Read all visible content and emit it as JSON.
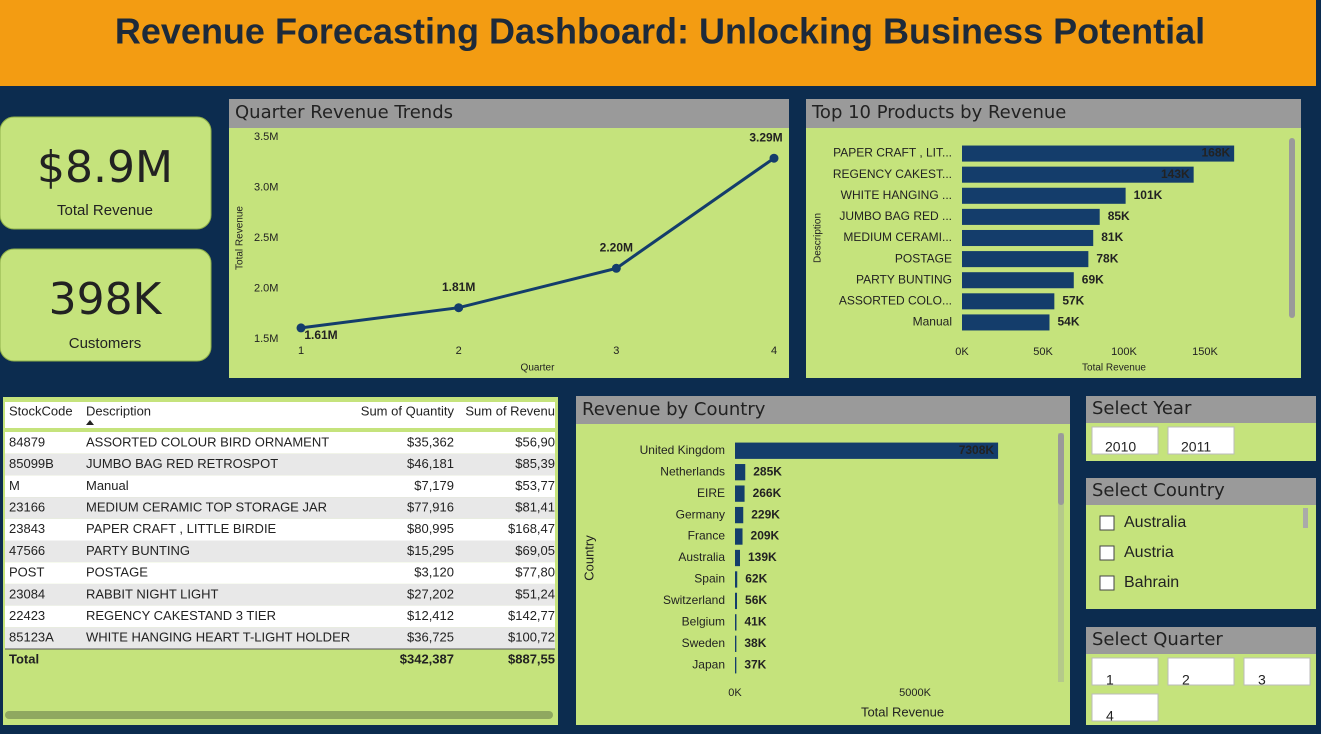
{
  "header": {
    "title": "Revenue Forecasting Dashboard: Unlocking Business Potential"
  },
  "kpis": [
    {
      "value": "$8.9M",
      "label": "Total Revenue"
    },
    {
      "value": "398K",
      "label": "Customers"
    }
  ],
  "chart_data": [
    {
      "type": "line",
      "title": "Quarter Revenue Trends",
      "x_label": "Quarter",
      "y_label": "Total Revenue",
      "x": [
        1,
        2,
        3,
        4
      ],
      "values": [
        1610000,
        1810000,
        2200000,
        3290000
      ],
      "value_labels": [
        "1.61M",
        "1.81M",
        "2.20M",
        "3.29M"
      ],
      "color": "#143d6b",
      "xlim": [
        1,
        4
      ],
      "xticks": [
        1,
        2,
        3,
        4
      ],
      "ylim": [
        1500000,
        3500000
      ],
      "yticks": [
        {
          "value": 1500000,
          "label": "1.5M"
        },
        {
          "value": 2000000,
          "label": "2.0M"
        },
        {
          "value": 2500000,
          "label": "2.5M"
        },
        {
          "value": 3000000,
          "label": "3.0M"
        },
        {
          "value": 3500000,
          "label": "3.5M"
        }
      ],
      "grid": false
    },
    {
      "type": "bar",
      "orientation": "horizontal",
      "title": "Top 10 Products by Revenue",
      "x_label": "Total Revenue",
      "y_label": "Description",
      "categories": [
        "PAPER CRAFT , LIT...",
        "REGENCY CAKEST...",
        "WHITE HANGING ...",
        "JUMBO BAG RED ...",
        "MEDIUM CERAMI...",
        "POSTAGE",
        "PARTY BUNTING",
        "ASSORTED COLO...",
        "Manual"
      ],
      "values": [
        168000,
        143000,
        101000,
        85000,
        81000,
        78000,
        69000,
        57000,
        54000
      ],
      "value_labels": [
        "168K",
        "143K",
        "101K",
        "85K",
        "81K",
        "78K",
        "69K",
        "57K",
        "54K"
      ],
      "color": "#143d6b",
      "xlim": [
        0,
        200000
      ],
      "xticks": [
        {
          "value": 0,
          "label": "0K"
        },
        {
          "value": 50000,
          "label": "50K"
        },
        {
          "value": 100000,
          "label": "100K"
        },
        {
          "value": 150000,
          "label": "150K"
        }
      ],
      "grid": false
    },
    {
      "type": "bar",
      "orientation": "horizontal",
      "title": "Revenue by Country",
      "x_label": "Total Revenue",
      "y_label": "Country",
      "categories": [
        "United Kingdom",
        "Netherlands",
        "EIRE",
        "Germany",
        "France",
        "Australia",
        "Spain",
        "Switzerland",
        "Belgium",
        "Sweden",
        "Japan"
      ],
      "values": [
        7308000,
        285000,
        266000,
        229000,
        209000,
        139000,
        62000,
        56000,
        41000,
        38000,
        37000
      ],
      "value_labels": [
        "7308K",
        "285K",
        "266K",
        "229K",
        "209K",
        "139K",
        "62K",
        "56K",
        "41K",
        "38K",
        "37K"
      ],
      "color": "#143d6b",
      "xlim": [
        0,
        8750000
      ],
      "xticks": [
        {
          "value": 0,
          "label": "0K"
        },
        {
          "value": 5000000,
          "label": "5000K"
        }
      ],
      "grid": false
    }
  ],
  "table": {
    "columns": [
      "StockCode",
      "Description",
      "Sum of Quantity",
      "Sum of Revenu"
    ],
    "rows": [
      [
        "84879",
        "ASSORTED COLOUR BIRD ORNAMENT",
        "$35,362",
        "$56,90"
      ],
      [
        "85099B",
        "JUMBO BAG RED RETROSPOT",
        "$46,181",
        "$85,39"
      ],
      [
        "M",
        "Manual",
        "$7,179",
        "$53,77"
      ],
      [
        "23166",
        "MEDIUM CERAMIC TOP STORAGE JAR",
        "$77,916",
        "$81,41"
      ],
      [
        "23843",
        "PAPER CRAFT , LITTLE BIRDIE",
        "$80,995",
        "$168,47"
      ],
      [
        "47566",
        "PARTY BUNTING",
        "$15,295",
        "$69,05"
      ],
      [
        "POST",
        "POSTAGE",
        "$3,120",
        "$77,80"
      ],
      [
        "23084",
        "RABBIT NIGHT LIGHT",
        "$27,202",
        "$51,24"
      ],
      [
        "22423",
        "REGENCY CAKESTAND 3 TIER",
        "$12,412",
        "$142,77"
      ],
      [
        "85123A",
        "WHITE HANGING HEART T-LIGHT HOLDER",
        "$36,725",
        "$100,72"
      ]
    ],
    "total": [
      "Total",
      "$342,387",
      "$887,55"
    ]
  },
  "slicers": [
    {
      "title": "Select Year",
      "items": [
        "2010",
        "2011"
      ]
    },
    {
      "title": "Select Country",
      "items": [
        "Australia",
        "Austria",
        "Bahrain"
      ]
    },
    {
      "title": "Select Quarter",
      "items": [
        "1",
        "2",
        "3",
        "4"
      ]
    }
  ]
}
